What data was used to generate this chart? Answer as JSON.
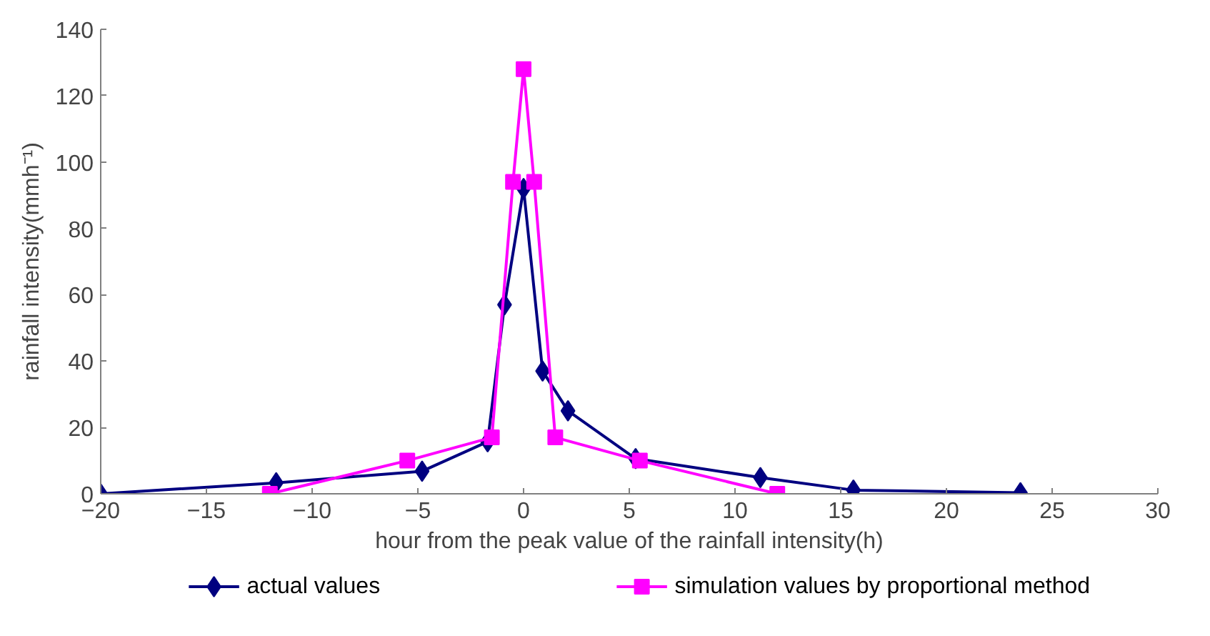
{
  "chart_data": {
    "type": "line",
    "xlabel": "hour from the peak value of the rainfall intensity(h)",
    "ylabel": "rainfall intensity(mmh⁻¹)",
    "xlim": [
      -20,
      30
    ],
    "xticks": [
      -20,
      -15,
      -10,
      -5,
      0,
      5,
      10,
      15,
      20,
      25,
      30
    ],
    "ylim": [
      0,
      140
    ],
    "yticks": [
      0,
      20,
      40,
      60,
      80,
      100,
      120,
      140
    ],
    "grid": false,
    "legend": "bottom",
    "line_style": "solid",
    "series": [
      {
        "name": "actual values",
        "color": "#000080",
        "marker": "diamond",
        "x": [
          -20,
          -11.7,
          -4.8,
          -1.7,
          -0.9,
          0,
          0.9,
          2.1,
          5.3,
          11.2,
          15.6,
          23.5
        ],
        "values": [
          0,
          3.3,
          6.8,
          15.7,
          57,
          92,
          37,
          25,
          10.6,
          4.9,
          1.1,
          0.3
        ]
      },
      {
        "name": "simulation values by proportional method",
        "color": "#ff00ff",
        "marker": "square",
        "x": [
          -12,
          -5.5,
          -1.5,
          -0.5,
          0,
          0.5,
          1.5,
          5.5,
          12
        ],
        "values": [
          0,
          10,
          17,
          94,
          128,
          94,
          17,
          10,
          0
        ]
      }
    ]
  }
}
